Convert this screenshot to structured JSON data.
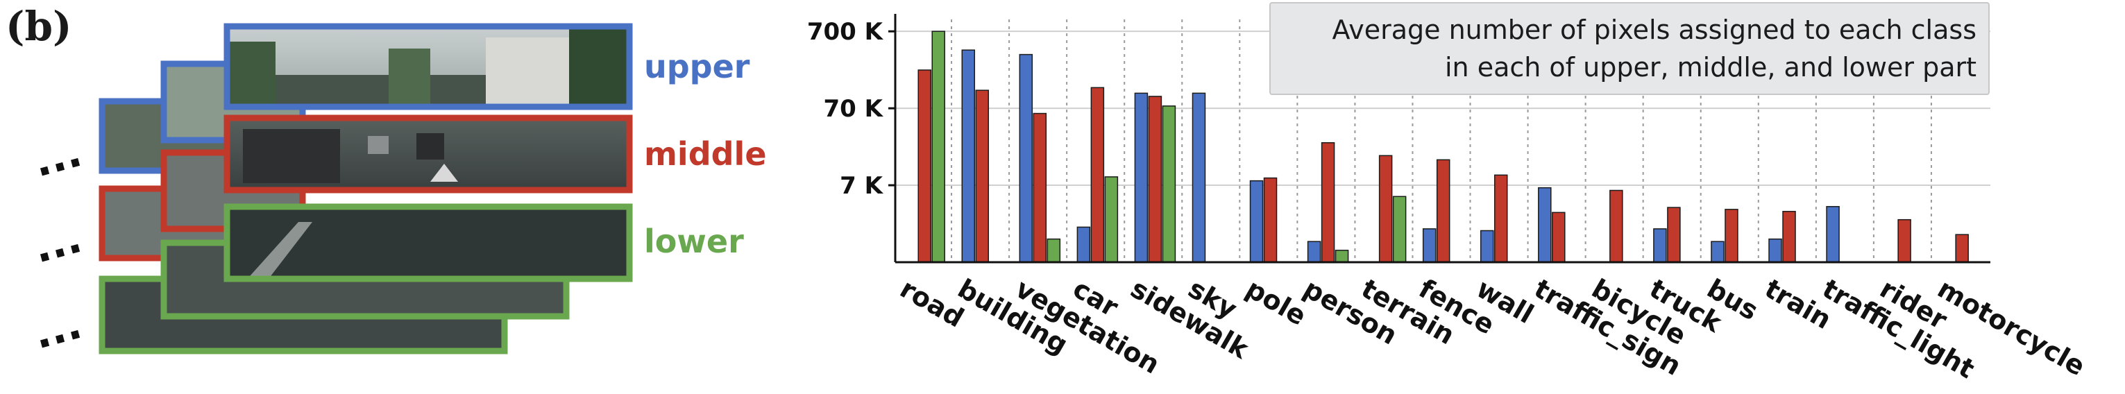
{
  "panel_label": "(b)",
  "strips": {
    "labels": [
      {
        "text": "upper",
        "color": "#4a72c4"
      },
      {
        "text": "middle",
        "color": "#c0392b"
      },
      {
        "text": "lower",
        "color": "#6aa84f"
      }
    ],
    "ellipsis": "..."
  },
  "colors": {
    "upper": "#4a72c4",
    "middle": "#c0392b",
    "lower": "#6aa84f"
  },
  "chart_data": {
    "type": "bar",
    "title": "Average number of pixels assigned to each class\nin each of upper, middle, and lower part",
    "xlabel": "",
    "ylabel": "",
    "yscale": "log",
    "ylim": [
      700,
      1000000
    ],
    "yticks": [
      7000,
      70000,
      700000
    ],
    "ytick_labels": [
      "7 K",
      "70 K",
      "700 K"
    ],
    "grid": true,
    "legend": "none",
    "categories": [
      "road",
      "building",
      "vegetation",
      "car",
      "sidewalk",
      "sky",
      "pole",
      "person",
      "terrain",
      "fence",
      "wall",
      "traffic_sign",
      "bicycle",
      "truck",
      "bus",
      "train",
      "traffic_light",
      "rider",
      "motorcycle"
    ],
    "series": [
      {
        "key": "upper",
        "values": [
          null,
          400000,
          350000,
          2000,
          110000,
          110000,
          8000,
          1300,
          null,
          1900,
          1800,
          6500,
          null,
          1900,
          1300,
          1400,
          3700,
          null,
          null
        ]
      },
      {
        "key": "middle",
        "values": [
          220000,
          120000,
          60000,
          130000,
          100000,
          null,
          8700,
          25000,
          17000,
          15000,
          9500,
          3100,
          6000,
          3600,
          3400,
          3200,
          null,
          2500,
          1600
        ]
      },
      {
        "key": "lower",
        "values": [
          700000,
          null,
          1400,
          9000,
          75000,
          null,
          null,
          1000,
          5000,
          null,
          null,
          null,
          null,
          null,
          null,
          null,
          null,
          null,
          null
        ]
      }
    ]
  }
}
